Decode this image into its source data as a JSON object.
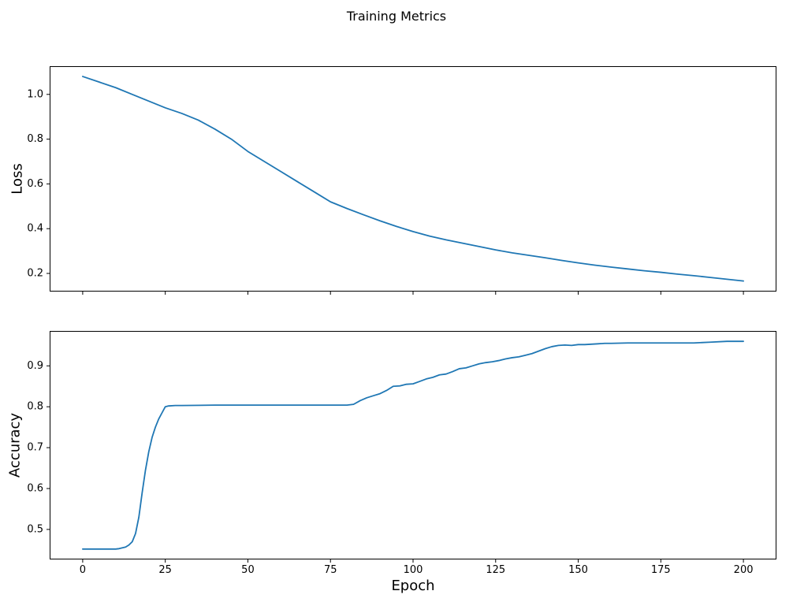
{
  "figure": {
    "title": "Training Metrics",
    "line_color": "#1f77b4",
    "background": "#ffffff"
  },
  "chart_data": [
    {
      "type": "line",
      "title": "",
      "xlabel": "",
      "ylabel": "Loss",
      "legend": null,
      "grid": false,
      "xlim": [
        -10,
        210
      ],
      "ylim": [
        0.119,
        1.126
      ],
      "xticks": [
        0,
        25,
        50,
        75,
        100,
        125,
        150,
        175,
        200
      ],
      "xtick_labels": [
        "",
        "",
        "",
        "",
        "",
        "",
        "",
        "",
        ""
      ],
      "yticks": [
        0.2,
        0.4,
        0.6,
        0.8,
        1.0
      ],
      "ytick_labels": [
        "0.2",
        "0.4",
        "0.6",
        "0.8",
        "1.0"
      ],
      "x": [
        0,
        5,
        10,
        15,
        20,
        25,
        30,
        35,
        40,
        45,
        50,
        55,
        60,
        65,
        70,
        75,
        80,
        85,
        90,
        95,
        100,
        105,
        110,
        115,
        120,
        125,
        130,
        135,
        140,
        145,
        150,
        155,
        160,
        165,
        170,
        175,
        180,
        185,
        190,
        195,
        200
      ],
      "y": [
        1.08,
        1.055,
        1.03,
        1.0,
        0.97,
        0.94,
        0.915,
        0.885,
        0.845,
        0.8,
        0.745,
        0.7,
        0.655,
        0.61,
        0.565,
        0.52,
        0.49,
        0.462,
        0.435,
        0.41,
        0.387,
        0.367,
        0.35,
        0.335,
        0.32,
        0.305,
        0.292,
        0.281,
        0.27,
        0.258,
        0.247,
        0.237,
        0.228,
        0.22,
        0.212,
        0.205,
        0.197,
        0.19,
        0.182,
        0.174,
        0.166
      ]
    },
    {
      "type": "line",
      "title": "",
      "xlabel": "Epoch",
      "ylabel": "Accuracy",
      "legend": null,
      "grid": false,
      "xlim": [
        -10,
        210
      ],
      "ylim": [
        0.4266,
        0.9854
      ],
      "xticks": [
        0,
        25,
        50,
        75,
        100,
        125,
        150,
        175,
        200
      ],
      "xtick_labels": [
        "0",
        "25",
        "50",
        "75",
        "100",
        "125",
        "150",
        "175",
        "200"
      ],
      "yticks": [
        0.5,
        0.6,
        0.7,
        0.8,
        0.9
      ],
      "ytick_labels": [
        "0.5",
        "0.6",
        "0.7",
        "0.8",
        "0.9"
      ],
      "x": [
        0,
        2,
        4,
        6,
        8,
        10,
        11,
        12,
        13,
        14,
        15,
        16,
        17,
        18,
        19,
        20,
        21,
        22,
        23,
        24,
        25,
        26,
        28,
        30,
        40,
        50,
        60,
        70,
        80,
        82,
        84,
        86,
        88,
        90,
        92,
        94,
        96,
        98,
        100,
        102,
        104,
        106,
        108,
        110,
        112,
        114,
        116,
        118,
        120,
        122,
        124,
        126,
        128,
        130,
        132,
        134,
        136,
        138,
        140,
        142,
        144,
        146,
        148,
        150,
        152,
        154,
        156,
        158,
        160,
        165,
        170,
        175,
        180,
        185,
        190,
        195,
        200
      ],
      "y": [
        0.452,
        0.452,
        0.452,
        0.452,
        0.452,
        0.452,
        0.453,
        0.455,
        0.457,
        0.462,
        0.47,
        0.49,
        0.53,
        0.59,
        0.645,
        0.69,
        0.725,
        0.75,
        0.77,
        0.785,
        0.8,
        0.802,
        0.803,
        0.803,
        0.804,
        0.804,
        0.804,
        0.804,
        0.804,
        0.806,
        0.815,
        0.822,
        0.827,
        0.832,
        0.84,
        0.85,
        0.851,
        0.855,
        0.856,
        0.862,
        0.868,
        0.872,
        0.878,
        0.88,
        0.886,
        0.893,
        0.895,
        0.9,
        0.905,
        0.908,
        0.91,
        0.913,
        0.917,
        0.92,
        0.922,
        0.926,
        0.93,
        0.936,
        0.942,
        0.947,
        0.95,
        0.951,
        0.95,
        0.952,
        0.952,
        0.953,
        0.954,
        0.955,
        0.955,
        0.956,
        0.956,
        0.956,
        0.956,
        0.956,
        0.958,
        0.96,
        0.96
      ]
    }
  ]
}
